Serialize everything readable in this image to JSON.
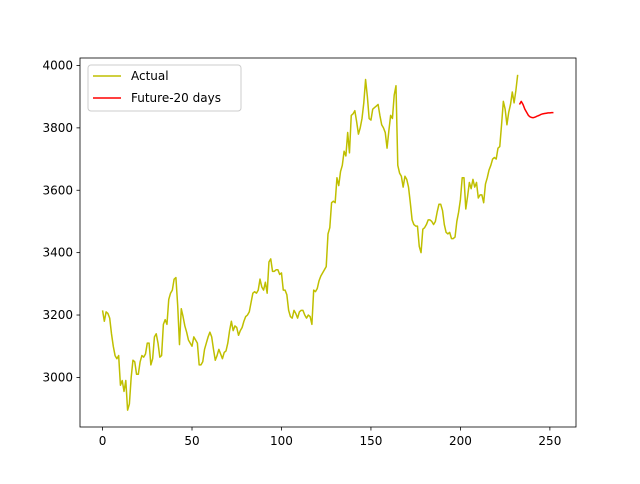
{
  "chart_data": {
    "type": "line",
    "series": [
      {
        "name": "Actual",
        "color": "#bfbf00",
        "x": [
          0,
          1,
          2,
          3,
          4,
          5,
          6,
          7,
          8,
          9,
          10,
          11,
          12,
          13,
          14,
          15,
          16,
          17,
          18,
          19,
          20,
          21,
          22,
          23,
          24,
          25,
          26,
          27,
          28,
          29,
          30,
          31,
          32,
          33,
          34,
          35,
          36,
          37,
          38,
          39,
          40,
          41,
          42,
          43,
          44,
          45,
          46,
          47,
          48,
          49,
          50,
          51,
          52,
          53,
          54,
          55,
          56,
          57,
          58,
          59,
          60,
          61,
          62,
          63,
          64,
          65,
          66,
          67,
          68,
          69,
          70,
          71,
          72,
          73,
          74,
          75,
          76,
          77,
          78,
          79,
          80,
          81,
          82,
          83,
          84,
          85,
          86,
          87,
          88,
          89,
          90,
          91,
          92,
          93,
          94,
          95,
          96,
          97,
          98,
          99,
          100,
          101,
          102,
          103,
          104,
          105,
          106,
          107,
          108,
          109,
          110,
          111,
          112,
          113,
          114,
          115,
          116,
          117,
          118,
          119,
          120,
          121,
          122,
          123,
          124,
          125,
          126,
          127,
          128,
          129,
          130,
          131,
          132,
          133,
          134,
          135,
          136,
          137,
          138,
          139,
          140,
          141,
          142,
          143,
          144,
          145,
          146,
          147,
          148,
          149,
          150,
          151,
          152,
          153,
          154,
          155,
          156,
          157,
          158,
          159,
          160,
          161,
          162,
          163,
          164,
          165,
          166,
          167,
          168,
          169,
          170,
          171,
          172,
          173,
          174,
          175,
          176,
          177,
          178,
          179,
          180,
          181,
          182,
          183,
          184,
          185,
          186,
          187,
          188,
          189,
          190,
          191,
          192,
          193,
          194,
          195,
          196,
          197,
          198,
          199,
          200,
          201,
          202,
          203,
          204,
          205,
          206,
          207,
          208,
          209,
          210,
          211,
          212,
          213,
          214,
          215,
          216,
          217,
          218,
          219,
          220,
          221,
          222,
          223,
          224,
          225,
          226,
          227,
          228,
          229,
          230,
          231,
          232
        ],
        "values": [
          3215,
          3180,
          3210,
          3205,
          3190,
          3140,
          3100,
          3070,
          3060,
          3070,
          2975,
          2990,
          2955,
          2990,
          2895,
          2915,
          3000,
          3055,
          3050,
          3010,
          3010,
          3050,
          3070,
          3065,
          3075,
          3110,
          3110,
          3040,
          3060,
          3130,
          3140,
          3110,
          3065,
          3070,
          3170,
          3185,
          3170,
          3250,
          3270,
          3280,
          3315,
          3320,
          3230,
          3105,
          3220,
          3195,
          3165,
          3145,
          3120,
          3110,
          3100,
          3130,
          3120,
          3110,
          3040,
          3040,
          3050,
          3090,
          3110,
          3130,
          3145,
          3130,
          3090,
          3055,
          3070,
          3090,
          3075,
          3060,
          3080,
          3085,
          3110,
          3150,
          3180,
          3150,
          3165,
          3160,
          3135,
          3150,
          3160,
          3180,
          3195,
          3200,
          3210,
          3240,
          3270,
          3275,
          3270,
          3280,
          3315,
          3290,
          3280,
          3305,
          3270,
          3370,
          3380,
          3340,
          3340,
          3345,
          3345,
          3330,
          3335,
          3280,
          3280,
          3265,
          3215,
          3195,
          3190,
          3215,
          3205,
          3190,
          3210,
          3215,
          3215,
          3200,
          3190,
          3200,
          3195,
          3170,
          3280,
          3275,
          3285,
          3310,
          3325,
          3335,
          3345,
          3355,
          3460,
          3480,
          3560,
          3565,
          3560,
          3640,
          3615,
          3660,
          3680,
          3725,
          3710,
          3785,
          3720,
          3840,
          3845,
          3855,
          3820,
          3780,
          3800,
          3830,
          3880,
          3955,
          3900,
          3830,
          3825,
          3860,
          3865,
          3870,
          3875,
          3840,
          3810,
          3800,
          3785,
          3735,
          3790,
          3840,
          3830,
          3905,
          3935,
          3680,
          3655,
          3645,
          3610,
          3645,
          3635,
          3610,
          3560,
          3505,
          3490,
          3485,
          3485,
          3420,
          3400,
          3475,
          3480,
          3490,
          3505,
          3505,
          3500,
          3490,
          3500,
          3530,
          3555,
          3555,
          3535,
          3490,
          3465,
          3460,
          3465,
          3445,
          3445,
          3450,
          3500,
          3530,
          3570,
          3640,
          3640,
          3540,
          3580,
          3625,
          3605,
          3635,
          3610,
          3625,
          3575,
          3585,
          3585,
          3560,
          3620,
          3640,
          3665,
          3680,
          3700,
          3705,
          3700,
          3735,
          3740,
          3810,
          3885,
          3860,
          3810,
          3850,
          3875,
          3915,
          3880,
          3920,
          3970
        ]
      },
      {
        "name": "Future-20 days",
        "color": "#ff0000",
        "x": [
          233,
          234,
          235,
          236,
          237,
          238,
          239,
          240,
          241,
          242,
          243,
          244,
          245,
          246,
          247,
          248,
          249,
          250,
          251,
          252
        ],
        "values": [
          3875,
          3885,
          3875,
          3860,
          3850,
          3840,
          3835,
          3833,
          3833,
          3835,
          3838,
          3840,
          3843,
          3845,
          3846,
          3847,
          3848,
          3848,
          3849,
          3849
        ]
      }
    ],
    "xlim": [
      -12.6,
      264.6
    ],
    "xticks": [
      0,
      50,
      100,
      150,
      200,
      250
    ],
    "ylim": [
      2841,
      4024
    ],
    "yticks": [
      3000,
      3200,
      3400,
      3600,
      3800,
      4000
    ],
    "legend": "upper left"
  }
}
